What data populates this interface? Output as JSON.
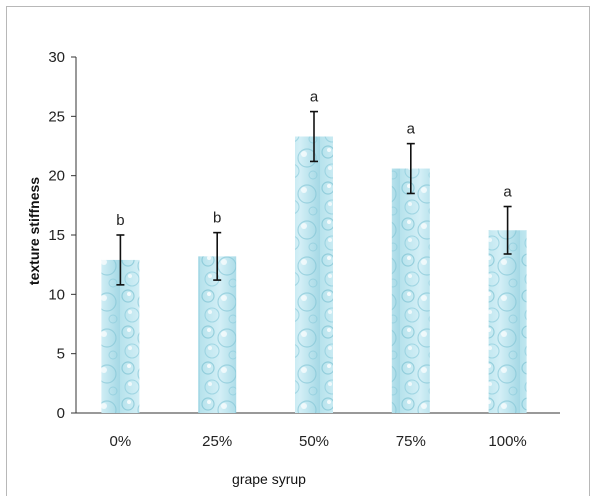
{
  "chart_data": {
    "type": "bar",
    "title": "",
    "xlabel": "grape syrup",
    "ylabel": "texture stiffness",
    "categories": [
      "0%",
      "25%",
      "50%",
      "75%",
      "100%"
    ],
    "values": [
      12.9,
      13.2,
      23.3,
      20.6,
      15.4
    ],
    "errors": [
      2.1,
      2.0,
      2.1,
      2.1,
      2.0
    ],
    "significance_letters": [
      "b",
      "b",
      "a",
      "a",
      "a"
    ],
    "ylim": [
      0,
      30
    ],
    "yticks": [
      0,
      5,
      10,
      15,
      20,
      25,
      30
    ],
    "grid": false,
    "bar_color": "#a9dce8",
    "bar_highlight": "#d6f1f7",
    "error_bar_color": "#111111",
    "axis_color": "#333333"
  }
}
